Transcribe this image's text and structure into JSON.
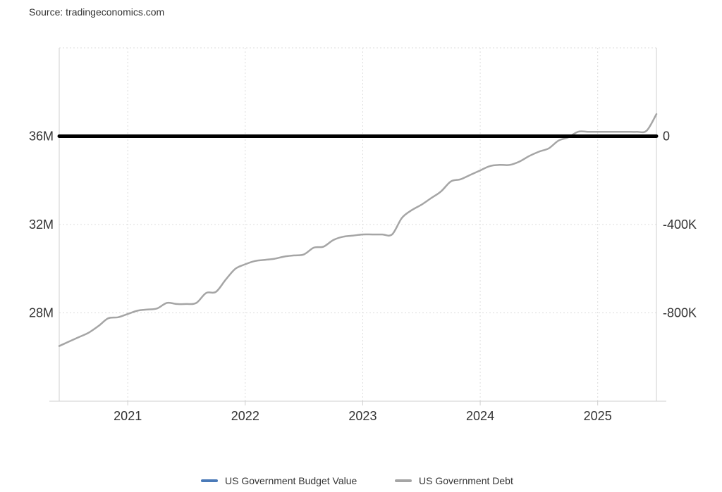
{
  "source": "Source: tradingeconomics.com",
  "chart_data": {
    "type": "line",
    "x_ticks": [
      "2021",
      "2022",
      "2023",
      "2024",
      "2025"
    ],
    "left_axis": {
      "ticks": [
        "36M",
        "32M",
        "28M"
      ],
      "tick_values": [
        36000000,
        32000000,
        28000000
      ],
      "ylim": [
        24000000,
        40000000
      ]
    },
    "right_axis": {
      "ticks": [
        "0",
        "-400K",
        "-800K"
      ],
      "tick_values": [
        0,
        -400000,
        -800000
      ],
      "ylim": [
        -1200000,
        400000
      ]
    },
    "xlim": [
      "2020-06",
      "2025-07"
    ],
    "grid": true,
    "legend_position": "bottom",
    "series": [
      {
        "name": "US Government Budget Value",
        "axis": "right",
        "color": "#4a7ab8",
        "x": [
          "2020-06",
          "2020-07",
          "2020-08",
          "2020-09",
          "2020-10",
          "2020-11",
          "2020-12",
          "2021-01",
          "2021-02",
          "2021-03",
          "2021-04",
          "2021-05",
          "2021-06",
          "2021-07",
          "2021-08",
          "2021-09",
          "2021-10",
          "2021-11",
          "2021-12",
          "2022-01",
          "2022-02",
          "2022-03",
          "2022-04",
          "2022-05",
          "2022-06",
          "2022-07",
          "2022-08",
          "2022-09",
          "2022-10",
          "2022-11",
          "2022-12",
          "2023-01",
          "2023-02",
          "2023-03",
          "2023-04",
          "2023-05",
          "2023-06",
          "2023-07",
          "2023-08",
          "2023-09",
          "2023-10",
          "2023-11",
          "2023-12",
          "2024-01",
          "2024-02",
          "2024-03",
          "2024-04",
          "2024-05",
          "2024-06",
          "2024-07",
          "2024-08",
          "2024-09",
          "2024-10",
          "2024-11",
          "2024-12",
          "2025-01",
          "2025-02",
          "2025-03",
          "2025-04",
          "2025-05",
          "2025-06",
          "2025-07"
        ],
        "values": [
          -60,
          -200,
          -130,
          -285,
          -145,
          -145,
          -175,
          -235,
          -645,
          -160,
          -145,
          -185,
          -295,
          -185,
          -65,
          -170,
          -175,
          -30,
          115,
          -215,
          -190,
          315,
          -70,
          -90,
          -220,
          -235,
          -420,
          -90,
          -245,
          -60,
          -45,
          -285,
          -340,
          175,
          -235,
          -220,
          -220,
          140,
          -170,
          -65,
          -320,
          -30,
          10,
          -285,
          -250,
          215,
          -335,
          -80,
          -270,
          -370,
          -30,
          60,
          -280,
          -360,
          -85,
          -125,
          -310,
          -140,
          360,
          -310,
          -10,
          -290
        ]
      },
      {
        "name": "US Government Debt",
        "axis": "left",
        "color": "#a5a5a5",
        "x": [
          "2020-06",
          "2020-07",
          "2020-08",
          "2020-09",
          "2020-10",
          "2020-11",
          "2020-12",
          "2021-01",
          "2021-02",
          "2021-03",
          "2021-04",
          "2021-05",
          "2021-06",
          "2021-07",
          "2021-08",
          "2021-09",
          "2021-10",
          "2021-11",
          "2021-12",
          "2022-01",
          "2022-02",
          "2022-03",
          "2022-04",
          "2022-05",
          "2022-06",
          "2022-07",
          "2022-08",
          "2022-09",
          "2022-10",
          "2022-11",
          "2022-12",
          "2023-01",
          "2023-02",
          "2023-03",
          "2023-04",
          "2023-05",
          "2023-06",
          "2023-07",
          "2023-08",
          "2023-09",
          "2023-10",
          "2023-11",
          "2023-12",
          "2024-01",
          "2024-02",
          "2024-03",
          "2024-04",
          "2024-05",
          "2024-06",
          "2024-07",
          "2024-08",
          "2024-09",
          "2024-10",
          "2024-11",
          "2024-12",
          "2025-01",
          "2025-02",
          "2025-03",
          "2025-04",
          "2025-05",
          "2025-06",
          "2025-07"
        ],
        "values": [
          26500000.0,
          26700000.0,
          26900000.0,
          27100000.0,
          27400000.0,
          27750000.0,
          27800000.0,
          27950000.0,
          28100000.0,
          28150000.0,
          28200000.0,
          28450000.0,
          28400000.0,
          28400000.0,
          28450000.0,
          28900000.0,
          28950000.0,
          29500000.0,
          30000000.0,
          30200000.0,
          30350000.0,
          30400000.0,
          30450000.0,
          30550000.0,
          30600000.0,
          30650000.0,
          30950000.0,
          31000000.0,
          31300000.0,
          31450000.0,
          31500000.0,
          31550000.0,
          31550000.0,
          31550000.0,
          31550000.0,
          32300000.0,
          32650000.0,
          32900000.0,
          33200000.0,
          33500000.0,
          33950000.0,
          34050000.0,
          34250000.0,
          34450000.0,
          34650000.0,
          34700000.0,
          34700000.0,
          34850000.0,
          35100000.0,
          35300000.0,
          35450000.0,
          35800000.0,
          35950000.0,
          36200000.0,
          36200000.0,
          36200000.0,
          36200000.0,
          36200000.0,
          36200000.0,
          36200000.0,
          36250000.0,
          37000000.0
        ]
      },
      {
        "name": "",
        "axis": "left",
        "color": "#000000",
        "x": [
          "2020-06",
          "2025-07"
        ],
        "values": [
          36000000,
          36000000
        ]
      }
    ]
  }
}
